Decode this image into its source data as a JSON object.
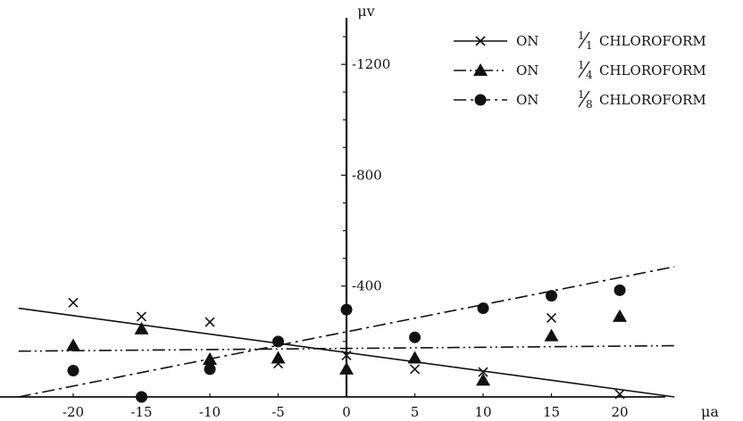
{
  "chart_data": {
    "type": "scatter",
    "title": "",
    "xlabel": "μa",
    "ylabel": "μv",
    "xlim": [
      -24,
      24
    ],
    "ylim": [
      0,
      -1300
    ],
    "x_ticks": [
      -20,
      -15,
      -10,
      -5,
      0,
      5,
      10,
      15,
      20
    ],
    "y_ticks": [
      -400,
      -800,
      -1200
    ],
    "grid": false,
    "legend_position": "top-right",
    "series": [
      {
        "name": "ON 1/1 CHLOROFORM",
        "fraction": "1/1",
        "marker": "x",
        "line_style": "solid",
        "x": [
          -20,
          -15,
          -10,
          -5,
          0,
          5,
          10,
          15,
          20
        ],
        "y": [
          -340,
          -290,
          -270,
          -120,
          -150,
          -100,
          -90,
          -285,
          -10
        ],
        "fit": [
          [
            -24,
            -320
          ],
          [
            24,
            0
          ]
        ]
      },
      {
        "name": "ON 1/4 CHLOROFORM",
        "fraction": "1/4",
        "marker": "triangle",
        "line_style": "dash-dot-dot",
        "x": [
          -20,
          -15,
          -10,
          -5,
          0,
          5,
          10,
          15,
          20
        ],
        "y": [
          -185,
          -245,
          -135,
          -140,
          -100,
          -140,
          -60,
          -220,
          -290
        ],
        "fit": [
          [
            -24,
            -165
          ],
          [
            24,
            -185
          ]
        ]
      },
      {
        "name": "ON 1/8 CHLOROFORM",
        "fraction": "1/8",
        "marker": "circle",
        "line_style": "dash-dot",
        "x": [
          -20,
          -15,
          -10,
          -5,
          0,
          5,
          10,
          15,
          20
        ],
        "y": [
          -95,
          0,
          -100,
          -200,
          -315,
          -215,
          -320,
          -365,
          -385
        ],
        "fit": [
          [
            -24,
            0
          ],
          [
            24,
            -470
          ]
        ]
      }
    ]
  },
  "legend": {
    "label_on": "ON",
    "label_chloroform": "CHLOROFORM"
  }
}
